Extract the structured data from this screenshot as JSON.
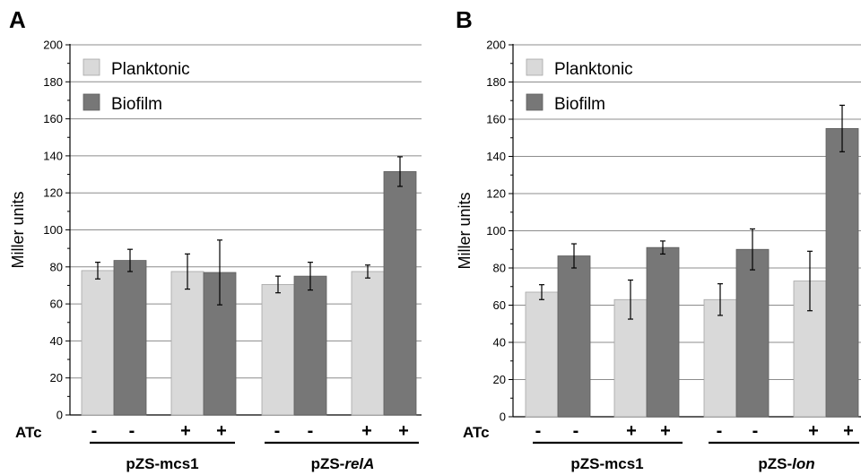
{
  "chart_data": [
    {
      "type": "bar",
      "panel_letter": "A",
      "ylabel": "Miller units",
      "ylim": [
        0,
        200
      ],
      "yticks": [
        "0",
        "20",
        "40",
        "60",
        "80",
        "100",
        "120",
        "140",
        "160",
        "180",
        "200"
      ],
      "grid": true,
      "legend_position": "top-left",
      "treatment_label": "ATc",
      "treatments": [
        "-",
        "-",
        "+",
        "+",
        "-",
        "-",
        "+",
        "+"
      ],
      "groups": [
        {
          "label": "pZS-mcs1",
          "italic_part": ""
        },
        {
          "label": "pZS-",
          "italic_part": "relA"
        }
      ],
      "series": [
        {
          "name": "Planktonic",
          "color": "#d9d9d9",
          "values": [
            78,
            77.5,
            70.5,
            77.5
          ],
          "errors": [
            4.5,
            9.5,
            4.5,
            3.5
          ]
        },
        {
          "name": "Biofilm",
          "color": "#777777",
          "values": [
            83.5,
            77,
            75,
            131.5
          ],
          "errors": [
            6,
            17.5,
            7.5,
            8
          ]
        }
      ]
    },
    {
      "type": "bar",
      "panel_letter": "B",
      "ylabel": "Miller units",
      "ylim": [
        0,
        200
      ],
      "yticks": [
        "0",
        "20",
        "40",
        "60",
        "80",
        "100",
        "120",
        "140",
        "160",
        "180",
        "200"
      ],
      "grid": true,
      "legend_position": "top-left",
      "treatment_label": "ATc",
      "treatments": [
        "-",
        "-",
        "+",
        "+",
        "-",
        "-",
        "+",
        "+"
      ],
      "groups": [
        {
          "label": "pZS-mcs1",
          "italic_part": ""
        },
        {
          "label": "pZS-",
          "italic_part": "lon"
        }
      ],
      "series": [
        {
          "name": "Planktonic",
          "color": "#d9d9d9",
          "values": [
            67,
            63,
            63,
            73
          ],
          "errors": [
            4,
            10.5,
            8.5,
            16
          ]
        },
        {
          "name": "Biofilm",
          "color": "#777777",
          "values": [
            86.5,
            91,
            90,
            155
          ],
          "errors": [
            6.5,
            3.5,
            11,
            12.5
          ]
        }
      ]
    }
  ]
}
